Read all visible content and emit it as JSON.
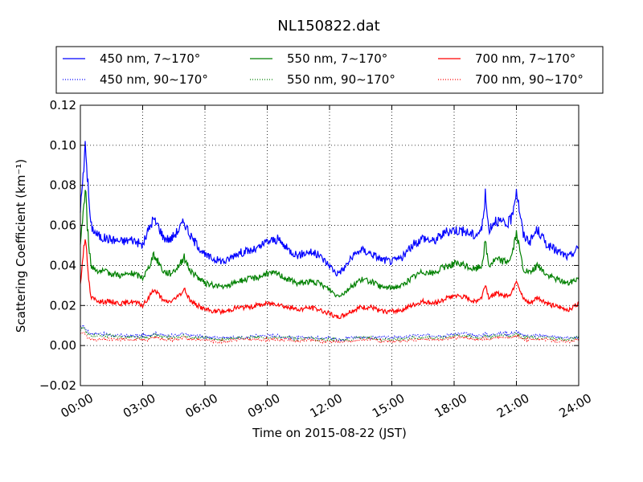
{
  "chart_data": {
    "type": "line",
    "title": "NL150822.dat",
    "xlabel": "Time on 2015-08-22 (JST)",
    "ylabel": "Scattering Coefficient (km⁻¹)",
    "xlim": [
      "00:00",
      "24:00"
    ],
    "ylim": [
      -0.02,
      0.12
    ],
    "x_ticks": [
      "00:00",
      "03:00",
      "06:00",
      "09:00",
      "12:00",
      "15:00",
      "18:00",
      "21:00",
      "24:00"
    ],
    "y_ticks": [
      "−0.02",
      "0.00",
      "0.02",
      "0.04",
      "0.06",
      "0.08",
      "0.10",
      "0.12"
    ],
    "grid": true,
    "legend_position": "top",
    "x": [
      "00:00",
      "00:10",
      "00:15",
      "00:20",
      "00:30",
      "00:45",
      "01:00",
      "01:30",
      "02:00",
      "02:30",
      "03:00",
      "03:15",
      "03:30",
      "03:45",
      "04:00",
      "04:20",
      "04:40",
      "05:00",
      "05:10",
      "05:20",
      "05:40",
      "06:00",
      "06:30",
      "07:00",
      "07:30",
      "08:00",
      "08:30",
      "09:00",
      "09:30",
      "10:00",
      "10:30",
      "11:00",
      "11:30",
      "12:00",
      "12:20",
      "12:40",
      "13:00",
      "13:30",
      "14:00",
      "14:30",
      "15:00",
      "15:30",
      "16:00",
      "16:30",
      "17:00",
      "17:30",
      "18:00",
      "18:30",
      "19:00",
      "19:20",
      "19:30",
      "19:40",
      "20:00",
      "20:30",
      "20:45",
      "21:00",
      "21:20",
      "21:40",
      "22:00",
      "22:30",
      "23:00",
      "23:30",
      "24:00"
    ],
    "series": [
      {
        "name": "450 nm, 7∼170°",
        "color": "#0000ff",
        "style": "solid",
        "values": [
          0.068,
          0.088,
          0.103,
          0.085,
          0.06,
          0.056,
          0.054,
          0.053,
          0.052,
          0.053,
          0.05,
          0.057,
          0.063,
          0.06,
          0.054,
          0.053,
          0.057,
          0.062,
          0.058,
          0.054,
          0.05,
          0.045,
          0.043,
          0.042,
          0.046,
          0.047,
          0.048,
          0.052,
          0.053,
          0.048,
          0.045,
          0.047,
          0.045,
          0.04,
          0.036,
          0.038,
          0.043,
          0.048,
          0.046,
          0.043,
          0.042,
          0.044,
          0.05,
          0.054,
          0.052,
          0.056,
          0.058,
          0.057,
          0.055,
          0.058,
          0.075,
          0.058,
          0.063,
          0.06,
          0.063,
          0.078,
          0.055,
          0.052,
          0.058,
          0.05,
          0.047,
          0.044,
          0.049
        ]
      },
      {
        "name": "550 nm, 7∼170°",
        "color": "#008000",
        "style": "solid",
        "values": [
          0.052,
          0.07,
          0.078,
          0.06,
          0.04,
          0.038,
          0.037,
          0.036,
          0.035,
          0.036,
          0.034,
          0.038,
          0.045,
          0.042,
          0.037,
          0.036,
          0.039,
          0.044,
          0.04,
          0.037,
          0.034,
          0.031,
          0.03,
          0.029,
          0.032,
          0.033,
          0.034,
          0.036,
          0.036,
          0.033,
          0.031,
          0.032,
          0.031,
          0.028,
          0.025,
          0.026,
          0.029,
          0.033,
          0.032,
          0.029,
          0.029,
          0.03,
          0.034,
          0.037,
          0.036,
          0.039,
          0.041,
          0.04,
          0.038,
          0.04,
          0.052,
          0.04,
          0.043,
          0.042,
          0.044,
          0.056,
          0.038,
          0.036,
          0.04,
          0.035,
          0.033,
          0.031,
          0.034
        ]
      },
      {
        "name": "700 nm, 7∼170°",
        "color": "#ff0000",
        "style": "solid",
        "values": [
          0.03,
          0.05,
          0.056,
          0.04,
          0.024,
          0.023,
          0.022,
          0.022,
          0.021,
          0.022,
          0.02,
          0.023,
          0.028,
          0.026,
          0.022,
          0.022,
          0.024,
          0.028,
          0.025,
          0.022,
          0.02,
          0.018,
          0.017,
          0.017,
          0.019,
          0.019,
          0.02,
          0.021,
          0.021,
          0.019,
          0.018,
          0.019,
          0.018,
          0.016,
          0.014,
          0.015,
          0.017,
          0.019,
          0.019,
          0.017,
          0.017,
          0.018,
          0.02,
          0.022,
          0.021,
          0.023,
          0.025,
          0.024,
          0.022,
          0.024,
          0.031,
          0.024,
          0.026,
          0.025,
          0.026,
          0.033,
          0.023,
          0.021,
          0.024,
          0.021,
          0.019,
          0.018,
          0.021
        ]
      },
      {
        "name": "450 nm, 90∼170°",
        "color": "#0000ff",
        "style": "dotted",
        "values": [
          0.009,
          0.01,
          0.008,
          0.007,
          0.006,
          0.006,
          0.006,
          0.005,
          0.005,
          0.005,
          0.005,
          0.005,
          0.006,
          0.006,
          0.005,
          0.005,
          0.005,
          0.006,
          0.005,
          0.005,
          0.005,
          0.004,
          0.004,
          0.004,
          0.004,
          0.004,
          0.005,
          0.005,
          0.005,
          0.004,
          0.004,
          0.004,
          0.004,
          0.004,
          0.003,
          0.003,
          0.004,
          0.004,
          0.004,
          0.004,
          0.004,
          0.004,
          0.005,
          0.005,
          0.005,
          0.005,
          0.006,
          0.006,
          0.005,
          0.005,
          0.006,
          0.005,
          0.006,
          0.006,
          0.006,
          0.007,
          0.005,
          0.005,
          0.005,
          0.005,
          0.004,
          0.004,
          0.004
        ]
      },
      {
        "name": "550 nm, 90∼170°",
        "color": "#008000",
        "style": "dotted",
        "values": [
          0.008,
          0.009,
          0.007,
          0.006,
          0.005,
          0.005,
          0.005,
          0.005,
          0.004,
          0.004,
          0.004,
          0.004,
          0.005,
          0.005,
          0.004,
          0.004,
          0.004,
          0.005,
          0.004,
          0.004,
          0.004,
          0.004,
          0.003,
          0.003,
          0.004,
          0.004,
          0.004,
          0.004,
          0.004,
          0.004,
          0.003,
          0.004,
          0.003,
          0.003,
          0.003,
          0.003,
          0.003,
          0.004,
          0.004,
          0.003,
          0.003,
          0.003,
          0.004,
          0.004,
          0.004,
          0.004,
          0.005,
          0.005,
          0.004,
          0.004,
          0.005,
          0.004,
          0.005,
          0.005,
          0.005,
          0.006,
          0.004,
          0.004,
          0.004,
          0.004,
          0.003,
          0.003,
          0.004
        ]
      },
      {
        "name": "700 nm, 90∼170°",
        "color": "#ff0000",
        "style": "dotted",
        "values": [
          0.006,
          0.007,
          0.005,
          0.004,
          0.003,
          0.003,
          0.003,
          0.003,
          0.003,
          0.003,
          0.003,
          0.003,
          0.004,
          0.004,
          0.003,
          0.003,
          0.003,
          0.004,
          0.003,
          0.003,
          0.003,
          0.003,
          0.002,
          0.002,
          0.003,
          0.003,
          0.003,
          0.003,
          0.003,
          0.003,
          0.002,
          0.003,
          0.002,
          0.002,
          0.002,
          0.002,
          0.002,
          0.003,
          0.003,
          0.002,
          0.002,
          0.002,
          0.003,
          0.003,
          0.003,
          0.003,
          0.004,
          0.004,
          0.003,
          0.003,
          0.004,
          0.003,
          0.004,
          0.004,
          0.004,
          0.005,
          0.003,
          0.003,
          0.003,
          0.003,
          0.002,
          0.002,
          0.003
        ]
      }
    ]
  }
}
